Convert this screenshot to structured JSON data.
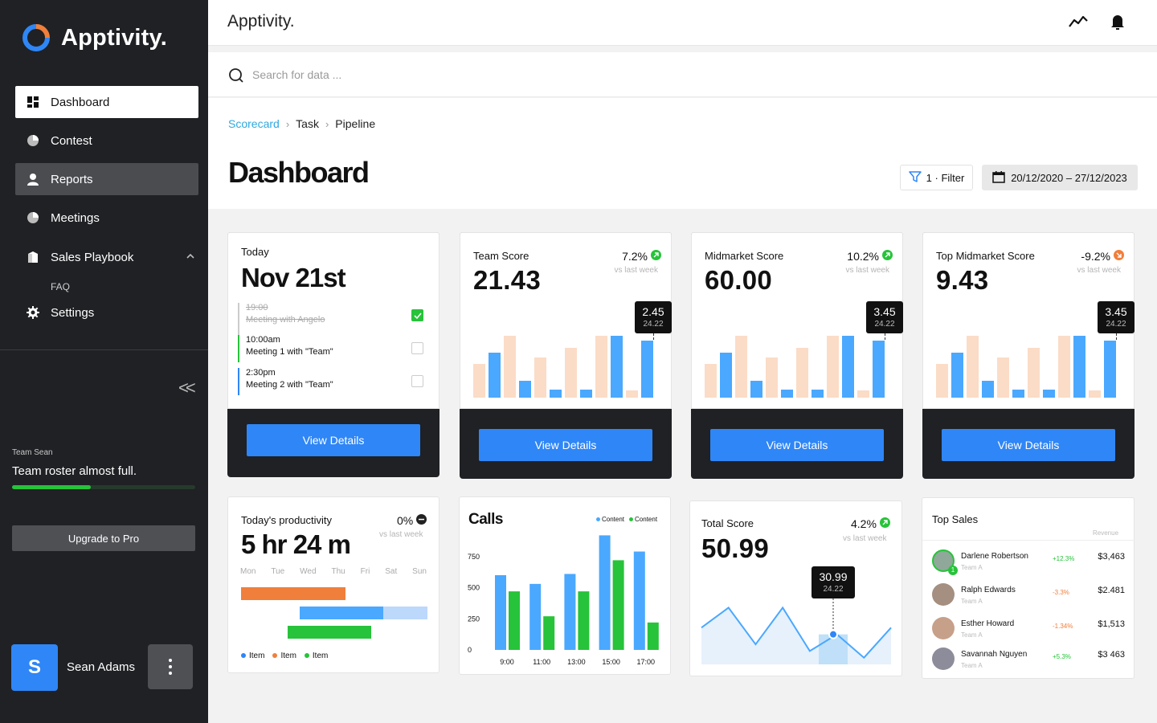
{
  "brand": {
    "name": "Apptivity.",
    "accent": "#2f86f6"
  },
  "sidebar": {
    "items": [
      {
        "label": "Dashboard",
        "icon": "dashboard-icon",
        "state": "active"
      },
      {
        "label": "Contest",
        "icon": "pie-chart-icon",
        "state": ""
      },
      {
        "label": "Reports",
        "icon": "user-icon",
        "state": "hover"
      },
      {
        "label": "Meetings",
        "icon": "pie-chart-icon",
        "state": ""
      },
      {
        "label": "Sales Playbook",
        "icon": "book-icon",
        "state": "expanded"
      },
      {
        "label": "Settings",
        "icon": "gear-icon",
        "state": ""
      }
    ],
    "sub_item": "FAQ",
    "collapse_glyph": "<<",
    "team_label": "Team Sean",
    "team_message": "Team roster almost full.",
    "team_progress": 0.43,
    "upgrade_label": "Upgrade to Pro",
    "user": {
      "initial": "S",
      "name": "Sean Adams"
    }
  },
  "topbar": {
    "title": "Apptivity.",
    "icons": [
      "activity-icon",
      "bell-icon"
    ]
  },
  "search": {
    "placeholder": "Search for data ..."
  },
  "breadcrumb": [
    "Scorecard",
    "Task",
    "Pipeline"
  ],
  "page_title": "Dashboard",
  "filter": {
    "label": "1 · Filter"
  },
  "date_range": {
    "label": "20/12/2020 – 27/12/2023"
  },
  "today_card": {
    "label": "Today",
    "date": "Nov 21st",
    "events": [
      {
        "time": "19:00",
        "desc": "Meeting with Angelo",
        "done": true
      },
      {
        "time": "10:00am",
        "desc": "Meeting 1 with \"Team\"",
        "done": false
      },
      {
        "time": "2:30pm",
        "desc": "Meeting 2 with \"Team\"",
        "done": false
      }
    ],
    "button": "View Details"
  },
  "score_cards": [
    {
      "label": "Team Score",
      "value": "21.43",
      "change": "7.2%",
      "direction": "up",
      "vs": "vs last week",
      "tooltip_value": "2.45",
      "tooltip_sub": "24.22",
      "button": "View Details",
      "bars": [
        0.55,
        0.73,
        1.0,
        0.27,
        0.65,
        0.13,
        0.8,
        0.13,
        1.0,
        1.0,
        0.12,
        0.92
      ]
    },
    {
      "label": "Midmarket Score",
      "value": "60.00",
      "change": "10.2%",
      "direction": "up",
      "vs": "vs last week",
      "tooltip_value": "3.45",
      "tooltip_sub": "24.22",
      "button": "View Details",
      "bars": [
        0.55,
        0.73,
        1.0,
        0.27,
        0.65,
        0.13,
        0.8,
        0.13,
        1.0,
        1.0,
        0.12,
        0.92
      ]
    },
    {
      "label": "Top Midmarket Score",
      "value": "9.43",
      "change": "-9.2%",
      "direction": "down",
      "vs": "vs last week",
      "tooltip_value": "3.45",
      "tooltip_sub": "24.22",
      "button": "View Details",
      "bars": [
        0.55,
        0.73,
        1.0,
        0.27,
        0.65,
        0.13,
        0.8,
        0.13,
        1.0,
        1.0,
        0.12,
        0.92
      ]
    }
  ],
  "productivity": {
    "label": "Today's productivity",
    "value": "5 hr 24 m",
    "change": "0%",
    "vs": "vs last week",
    "days": [
      "Mon",
      "Tue",
      "Wed",
      "Thu",
      "Fri",
      "Sat",
      "Sun"
    ],
    "legend": [
      {
        "label": "Item",
        "color": "#2f86f6"
      },
      {
        "label": "Item",
        "color": "#f07f3c"
      },
      {
        "label": "Item",
        "color": "#27c33a"
      }
    ]
  },
  "calls": {
    "title": "Calls",
    "legend": [
      {
        "label": "Content",
        "color": "#4aa8ff"
      },
      {
        "label": "Content",
        "color": "#27c33a"
      }
    ],
    "y_ticks": [
      "750",
      "500",
      "250",
      "0"
    ],
    "x_ticks": [
      "9:00",
      "11:00",
      "13:00",
      "15:00",
      "17:00"
    ]
  },
  "total_score": {
    "label": "Total Score",
    "value": "50.99",
    "change": "4.2%",
    "vs": "vs last week",
    "tooltip_value": "30.99",
    "tooltip_sub": "24.22"
  },
  "top_sales": {
    "title": "Top Sales",
    "column": "Revenue",
    "rows": [
      {
        "name": "Darlene Robertson",
        "team": "Team A",
        "change": "+12.3%",
        "revenue": "$3,463",
        "change_color": "#27c33a",
        "badge": "1"
      },
      {
        "name": "Ralph Edwards",
        "team": "Team A",
        "change": "-3.3%",
        "revenue": "$2.481",
        "change_color": "#f07f3c"
      },
      {
        "name": "Esther Howard",
        "team": "Team A",
        "change": "-1.34%",
        "revenue": "$1,513",
        "change_color": "#f07f3c"
      },
      {
        "name": "Savannah Nguyen",
        "team": "Team A",
        "change": "+5.3%",
        "revenue": "$3 463",
        "change_color": "#27c33a"
      }
    ]
  },
  "chart_data": [
    {
      "type": "bar",
      "title": "Calls",
      "categories": [
        "9:00",
        "11:00",
        "13:00",
        "15:00",
        "17:00"
      ],
      "series": [
        {
          "name": "Content",
          "values": [
            600,
            530,
            610,
            920,
            790
          ]
        },
        {
          "name": "Content",
          "values": [
            470,
            270,
            470,
            720,
            220
          ]
        }
      ],
      "ylim": [
        0,
        1000
      ],
      "y_ticks": [
        0,
        250,
        500,
        750
      ]
    },
    {
      "type": "line",
      "title": "Total Score",
      "x": [
        0,
        1,
        2,
        3,
        4,
        5,
        6,
        7
      ],
      "values": [
        0.55,
        0.85,
        0.3,
        0.85,
        0.2,
        0.45,
        0.1,
        0.55
      ],
      "highlight": {
        "value": "30.99",
        "sub": "24.22"
      }
    }
  ]
}
